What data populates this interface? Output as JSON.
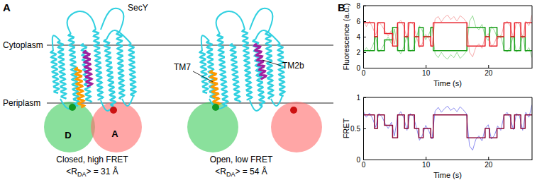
{
  "diagram": {
    "panel_label": "A",
    "title": "SecY",
    "membrane": {
      "top": "Cytoplasm",
      "bottom": "Periplasm"
    },
    "helix_labels": [
      "TM7",
      "TM2b"
    ],
    "dye_labels": {
      "donor": "D",
      "acceptor": "A"
    },
    "states": [
      {
        "caption": "Closed, high FRET",
        "distance": {
          "open": "<R",
          "subscript": "DA",
          "rest": "> = 31 Å"
        }
      },
      {
        "caption": "Open, low FRET",
        "distance": {
          "open": "<R",
          "subscript": "DA",
          "rest": "> = 54 Å"
        }
      }
    ]
  },
  "chart_panel_label": "B",
  "chart_data": [
    {
      "type": "line",
      "xlabel": "Time (s)",
      "ylabel": "Fluorescence (a.u.)",
      "xlim": [
        0,
        27
      ],
      "xticks": [
        0,
        10,
        20
      ],
      "ylim": [
        0,
        8
      ],
      "yticks": [
        0,
        2,
        4,
        6,
        8
      ],
      "series": [
        {
          "color": "#8fd88f",
          "line_style": "solid",
          "x": [
            0,
            0.5,
            1,
            1.5,
            2,
            2.5,
            3,
            3.5,
            4,
            4.5,
            5,
            5.5,
            6,
            6.5,
            7,
            7.5,
            8,
            8.5,
            9,
            9.5,
            10,
            10.5,
            11,
            11.5,
            12,
            12.5,
            13,
            13.5,
            14,
            14.5,
            15,
            15.5,
            16,
            16.5,
            17,
            17.5,
            18,
            18.5,
            19,
            19.5,
            20,
            20.5,
            21,
            21.5,
            22,
            22.5,
            23,
            23.5,
            24,
            24.5,
            25,
            25.5,
            26,
            26.5,
            27
          ],
          "values": [
            1.9,
            2.6,
            2.1,
            2.8,
            3.9,
            2.0,
            2.5,
            3.3,
            4.0,
            3.1,
            5.0,
            2.4,
            1.8,
            2.7,
            4.2,
            2.1,
            2.4,
            3.8,
            5.4,
            4.7,
            3.6,
            4.3,
            5.3,
            1.8,
            1.3,
            2.0,
            1.4,
            1.1,
            1.7,
            1.3,
            2.0,
            1.2,
            1.6,
            2.1,
            6.0,
            6.7,
            5.3,
            4.9,
            5.6,
            4.0,
            3.5,
            5.3,
            4.8,
            3.7,
            4.2,
            2.4,
            2.0,
            2.6,
            4.1,
            2.0,
            2.4,
            4.2,
            2.0,
            2.6,
            1.3
          ]
        },
        {
          "color": "#f5a3a3",
          "line_style": "solid",
          "x": [
            0,
            0.5,
            1,
            1.5,
            2,
            2.5,
            3,
            3.5,
            4,
            4.5,
            5,
            5.5,
            6,
            6.5,
            7,
            7.5,
            8,
            8.5,
            9,
            9.5,
            10,
            10.5,
            11,
            11.5,
            12,
            12.5,
            13,
            13.5,
            14,
            14.5,
            15,
            15.5,
            16,
            16.5,
            17,
            17.5,
            18,
            18.5,
            19,
            19.5,
            20,
            20.5,
            21,
            21.5,
            22,
            22.5,
            23,
            23.5,
            24,
            24.5,
            25,
            25.5,
            26,
            26.5,
            27
          ],
          "values": [
            6.1,
            5.3,
            6.0,
            5.2,
            4.2,
            5.9,
            5.4,
            4.7,
            4.1,
            4.8,
            3.0,
            5.7,
            6.1,
            5.3,
            3.8,
            5.9,
            5.6,
            4.1,
            2.6,
            3.2,
            4.3,
            3.8,
            2.7,
            6.3,
            6.6,
            5.9,
            6.5,
            6.8,
            6.2,
            6.6,
            6.0,
            6.7,
            6.4,
            5.9,
            2.0,
            1.4,
            2.6,
            3.1,
            2.5,
            4.0,
            4.4,
            2.7,
            3.2,
            4.3,
            3.8,
            5.5,
            6.0,
            5.4,
            3.9,
            5.9,
            5.6,
            3.8,
            6.0,
            5.4,
            6.8
          ]
        },
        {
          "color": "#1a9e1a",
          "line_style": "step",
          "x": [
            0,
            1.8,
            2.3,
            3.4,
            4.7,
            5.5,
            6.6,
            7.2,
            8.2,
            8.9,
            9.6,
            10.8,
            11.2,
            16.6,
            19.5,
            20.2,
            21.4,
            22.5,
            23.6,
            24.2,
            25.2,
            25.9,
            27
          ],
          "values": [
            2.2,
            4.0,
            2.2,
            3.6,
            5.2,
            2.2,
            4.0,
            2.2,
            4.0,
            5.2,
            4.0,
            5.2,
            2.2,
            5.2,
            4.0,
            5.2,
            4.0,
            2.2,
            4.0,
            2.2,
            4.0,
            2.2,
            2.2
          ]
        },
        {
          "color": "#e8202a",
          "line_style": "step",
          "x": [
            0,
            1.8,
            2.3,
            3.4,
            4.7,
            5.5,
            6.6,
            7.2,
            8.2,
            8.9,
            9.6,
            10.8,
            11.2,
            16.6,
            19.5,
            20.2,
            21.4,
            22.5,
            23.6,
            24.2,
            25.2,
            25.9,
            27
          ],
          "values": [
            5.8,
            4.0,
            5.8,
            4.4,
            2.8,
            5.8,
            4.0,
            5.8,
            4.0,
            2.8,
            4.0,
            2.8,
            5.8,
            2.8,
            4.0,
            2.8,
            4.0,
            5.8,
            4.0,
            5.8,
            4.0,
            5.8,
            5.8
          ]
        }
      ]
    },
    {
      "type": "line",
      "xlabel": "Time (s)",
      "ylabel": "FRET",
      "xlim": [
        0,
        27
      ],
      "xticks": [
        0,
        10,
        20
      ],
      "ylim": [
        0,
        1
      ],
      "yticks": [
        0,
        0.5,
        1
      ],
      "series": [
        {
          "color": "#8080ee",
          "line_style": "solid",
          "x": [
            0,
            0.5,
            1,
            1.5,
            2,
            2.5,
            3,
            3.5,
            4,
            4.5,
            5,
            5.5,
            6,
            6.5,
            7,
            7.5,
            8,
            8.5,
            9,
            9.5,
            10,
            10.5,
            11,
            11.5,
            12,
            12.5,
            13,
            13.5,
            14,
            14.5,
            15,
            15.5,
            16,
            16.5,
            17,
            17.5,
            18,
            18.5,
            19,
            19.5,
            20,
            20.5,
            21,
            21.5,
            22,
            22.5,
            23,
            23.5,
            24,
            24.5,
            25,
            25.5,
            26,
            26.5,
            27
          ],
          "values": [
            0.78,
            0.68,
            0.75,
            0.66,
            0.52,
            0.74,
            0.69,
            0.58,
            0.5,
            0.6,
            0.38,
            0.7,
            0.77,
            0.67,
            0.47,
            0.74,
            0.7,
            0.52,
            0.31,
            0.4,
            0.55,
            0.46,
            0.33,
            0.78,
            0.84,
            0.76,
            0.82,
            0.86,
            0.79,
            0.83,
            0.77,
            0.85,
            0.8,
            0.74,
            0.22,
            0.15,
            0.32,
            0.38,
            0.3,
            0.5,
            0.56,
            0.33,
            0.39,
            0.54,
            0.47,
            0.7,
            0.76,
            0.68,
            0.48,
            0.74,
            0.7,
            0.47,
            0.76,
            0.68,
            0.88
          ]
        },
        {
          "color": "#8b0a3a",
          "line_style": "step",
          "x": [
            0,
            1.8,
            2.3,
            3.4,
            4.7,
            5.5,
            6.6,
            7.2,
            8.2,
            8.9,
            9.6,
            10.8,
            11.2,
            16.6,
            19.5,
            20.2,
            21.4,
            22.5,
            23.6,
            24.2,
            25.2,
            25.9,
            27
          ],
          "values": [
            0.72,
            0.5,
            0.72,
            0.55,
            0.35,
            0.72,
            0.5,
            0.72,
            0.5,
            0.35,
            0.5,
            0.35,
            0.72,
            0.35,
            0.5,
            0.35,
            0.5,
            0.72,
            0.5,
            0.72,
            0.5,
            0.72,
            0.72
          ]
        }
      ]
    }
  ]
}
